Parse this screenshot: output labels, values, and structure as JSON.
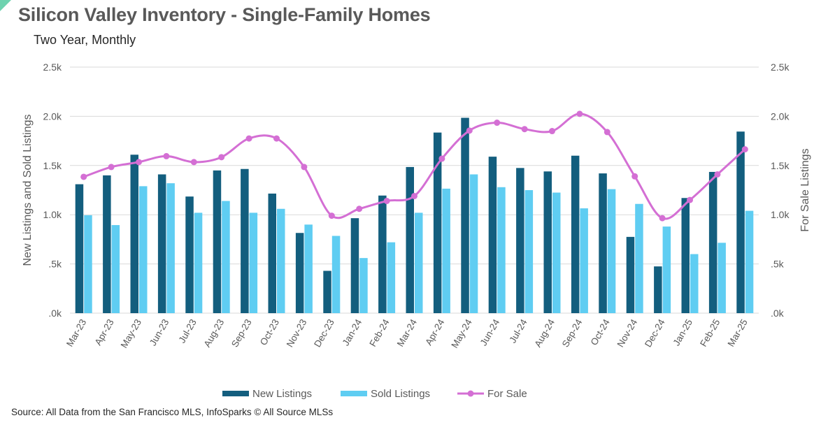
{
  "title": "Silicon Valley Inventory - Single-Family Homes",
  "subtitle": "Two Year, Monthly",
  "source": "Source: All Data from the San Francisco MLS, InfoSparks © All Source MLSs",
  "colors": {
    "new_listings": "#135e7e",
    "sold_listings": "#5fcdf2",
    "for_sale": "#d46fd4",
    "grid": "#d9d9d9",
    "axis_text": "#595959"
  },
  "chart_data": {
    "type": "bar",
    "categories": [
      "Mar-23",
      "Apr-23",
      "May-23",
      "Jun-23",
      "Jul-23",
      "Aug-23",
      "Sep-23",
      "Oct-23",
      "Nov-23",
      "Dec-23",
      "Jan-24",
      "Feb-24",
      "Mar-24",
      "Apr-24",
      "May-24",
      "Jun-24",
      "Jul-24",
      "Aug-24",
      "Sep-24",
      "Oct-24",
      "Nov-24",
      "Dec-24",
      "Jan-25",
      "Feb-25",
      "Mar-25"
    ],
    "series": [
      {
        "name": "New Listings",
        "type": "bar",
        "axis": "left",
        "values": [
          1310,
          1400,
          1610,
          1410,
          1185,
          1450,
          1465,
          1215,
          815,
          430,
          965,
          1195,
          1485,
          1835,
          1985,
          1590,
          1475,
          1440,
          1600,
          1420,
          775,
          475,
          1170,
          1435,
          1845
        ]
      },
      {
        "name": "Sold Listings",
        "type": "bar",
        "axis": "left",
        "values": [
          995,
          895,
          1290,
          1320,
          1020,
          1140,
          1020,
          1060,
          900,
          785,
          560,
          720,
          1020,
          1265,
          1410,
          1280,
          1250,
          1225,
          1065,
          1260,
          1110,
          880,
          600,
          715,
          1040
        ]
      },
      {
        "name": "For Sale",
        "type": "line",
        "axis": "right",
        "values": [
          1385,
          1485,
          1535,
          1595,
          1535,
          1585,
          1775,
          1775,
          1485,
          990,
          1060,
          1140,
          1190,
          1570,
          1855,
          1935,
          1870,
          1850,
          2025,
          1840,
          1390,
          965,
          1150,
          1410,
          1665
        ]
      }
    ],
    "ylabel": "New Listings and Sold Listings",
    "y2label": "For Sale Listings",
    "ylim": [
      0,
      2500
    ],
    "y2lim": [
      0,
      2500
    ],
    "yticks": [
      ".0k",
      ".5k",
      "1.0k",
      "1.5k",
      "2.0k",
      "2.5k"
    ],
    "y2ticks": [
      ".0k",
      ".5k",
      "1.0k",
      "1.5k",
      "2.0k",
      "2.5k"
    ],
    "grid": true,
    "legend_position": "bottom"
  }
}
